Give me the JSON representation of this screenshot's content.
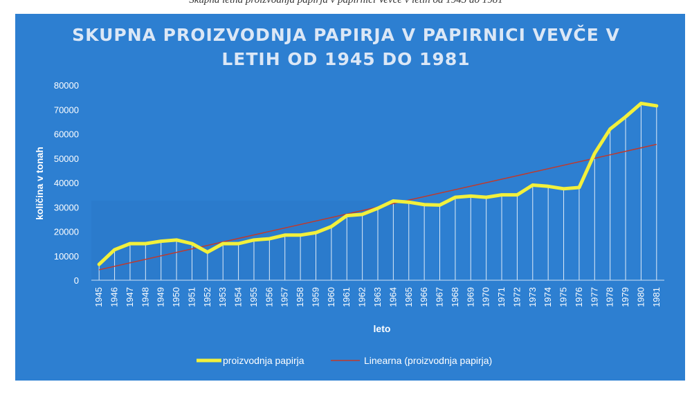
{
  "caption": "Skupna letna proizvodnja papirja v papirnici Vevče v letih od 1945 do 1981",
  "chart_data": {
    "type": "line",
    "title_lines": [
      "SKUPNA PROIZVODNJA PAPIRJA V PAPIRNICI VEVČE V",
      "LETIH OD 1945 DO 1981"
    ],
    "xlabel": "leto",
    "ylabel": "količina v tonah",
    "ylim": [
      0,
      80000
    ],
    "yticks": [
      0,
      10000,
      20000,
      30000,
      40000,
      50000,
      60000,
      70000,
      80000
    ],
    "categories": [
      "1945",
      "1946",
      "1947",
      "1948",
      "1949",
      "1950",
      "1951",
      "1952",
      "1953",
      "1954",
      "1955",
      "1956",
      "1957",
      "1958",
      "1959",
      "1960",
      "1961",
      "1962",
      "1963",
      "1964",
      "1965",
      "1966",
      "1967",
      "1968",
      "1969",
      "1970",
      "1971",
      "1972",
      "1973",
      "1974",
      "1975",
      "1976",
      "1977",
      "1978",
      "1979",
      "1980",
      "1981"
    ],
    "series": [
      {
        "name": "proizvodnja papirja",
        "color": "#f2f03c",
        "values": [
          6500,
          12500,
          15000,
          15000,
          16000,
          16500,
          15000,
          11500,
          15000,
          15000,
          16500,
          17000,
          18500,
          18500,
          19500,
          22000,
          26500,
          27000,
          29500,
          32500,
          32000,
          31000,
          30800,
          34000,
          34500,
          34000,
          35000,
          35000,
          39000,
          38500,
          37500,
          38000,
          52000,
          62000,
          67000,
          72500,
          71500
        ]
      },
      {
        "name": "Linearna (proizvodnja papirja)",
        "color": "#c0392b",
        "trend": true
      }
    ],
    "grid": false,
    "legend_position": "bottom"
  }
}
